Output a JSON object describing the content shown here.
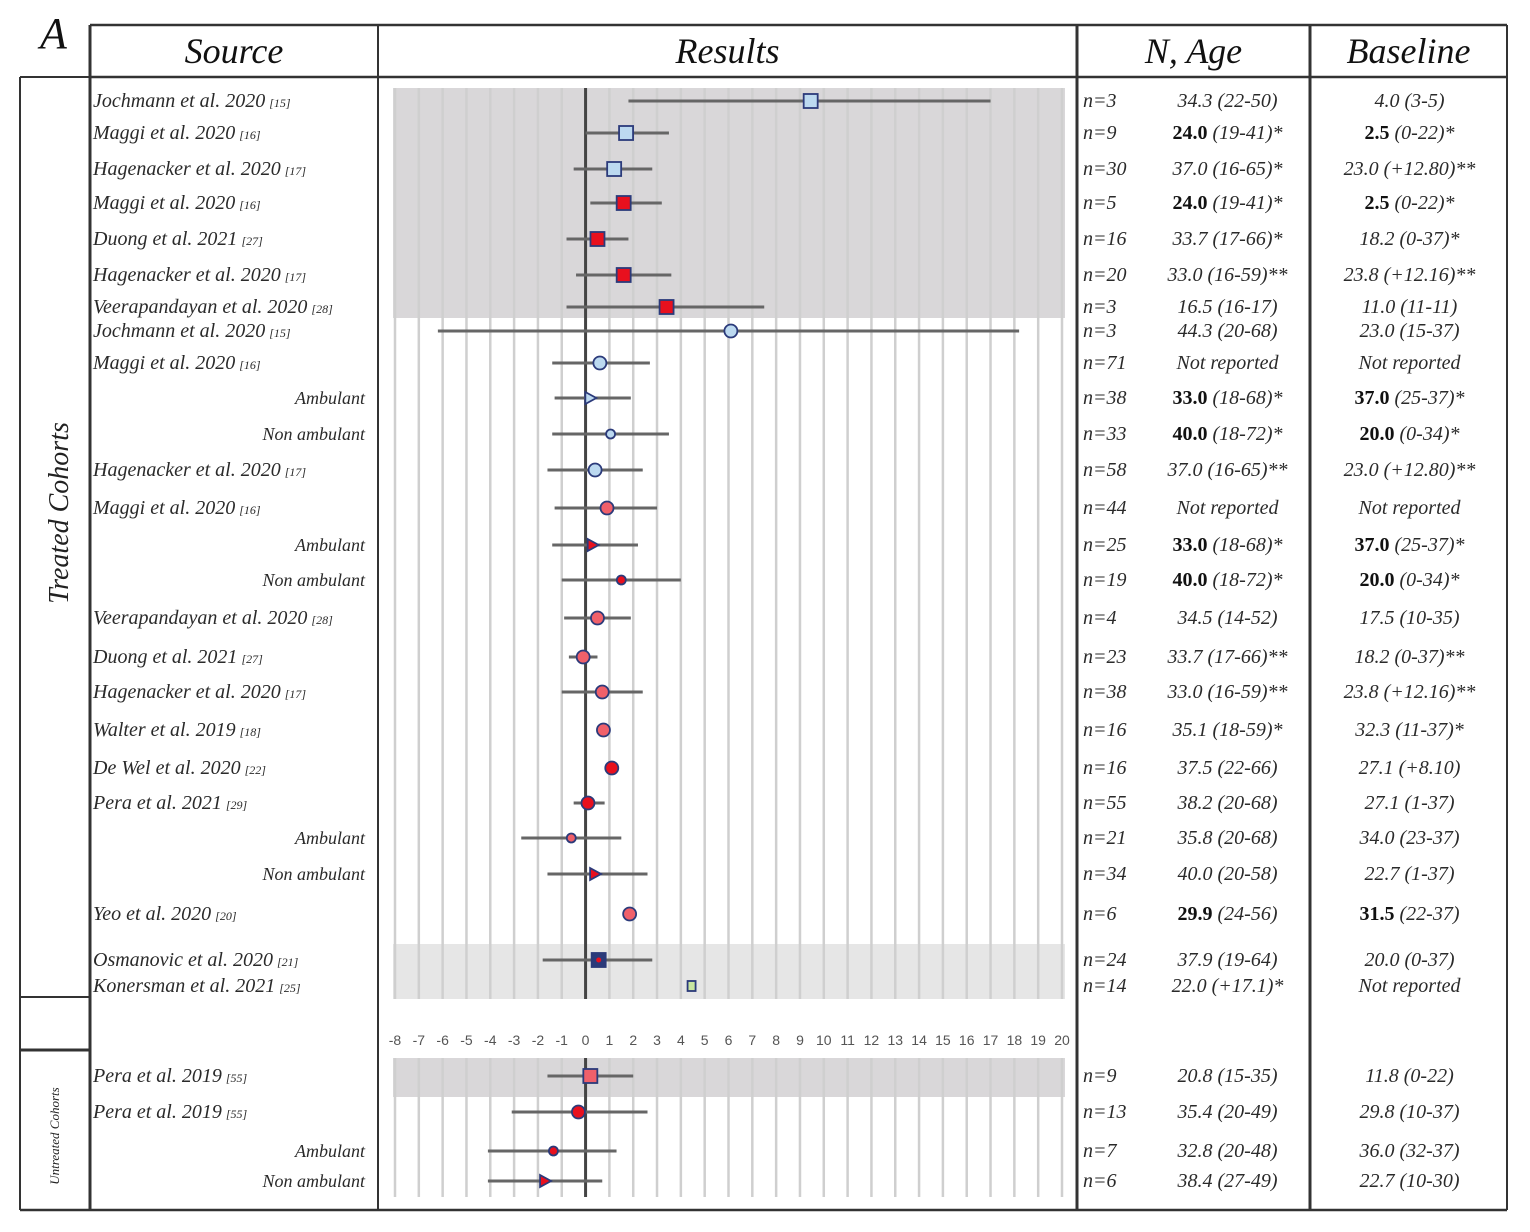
{
  "panel_label": "A",
  "headers": {
    "source": "Source",
    "results": "Results",
    "n_age": "N, Age",
    "baseline": "Baseline"
  },
  "groups": {
    "treated": "Treated Cohorts",
    "untreated": "Untreated Cohorts"
  },
  "chart_data": {
    "type": "forest",
    "x_ticks": [
      -8,
      -7,
      -6,
      -5,
      -4,
      -3,
      -2,
      -1,
      0,
      1,
      2,
      3,
      4,
      5,
      6,
      7,
      8,
      9,
      10,
      11,
      12,
      13,
      14,
      15,
      16,
      17,
      18,
      19,
      20
    ],
    "xlim": [
      -8,
      20
    ],
    "reference_line": 0,
    "grid": "vertical",
    "colors": {
      "light_blue": "#bcd9f0",
      "red": "#e8101e",
      "pink": "#f0606a",
      "navy": "#2b3a7a",
      "green": "#c8e6a0",
      "band": "#d9d7d9",
      "band_light": "#e6e6e6"
    },
    "rows": [
      {
        "source": "Jochmann et al. 2020",
        "ref": "[15]",
        "sub": false,
        "group": "treated",
        "band": "dark",
        "marker": "square",
        "fill": "light_blue",
        "est": 9.45,
        "lo": 1.8,
        "hi": 17.0,
        "n": "n=3",
        "age": {
          "bold": "",
          "text": "34.3 (22-50)"
        },
        "baseline": {
          "bold": "",
          "text": "4.0 (3-5)"
        }
      },
      {
        "source": "Maggi et al. 2020",
        "ref": "[16]",
        "sub": false,
        "group": "treated",
        "band": "dark",
        "marker": "square",
        "fill": "light_blue",
        "est": 1.7,
        "lo": 0.0,
        "hi": 3.5,
        "n": "n=9",
        "age": {
          "bold": "24.0",
          "text": " (19-41)*"
        },
        "baseline": {
          "bold": "2.5",
          "text": " (0-22)*"
        }
      },
      {
        "source": "Hagenacker et al. 2020",
        "ref": "[17]",
        "sub": false,
        "group": "treated",
        "band": "dark",
        "marker": "square",
        "fill": "light_blue",
        "est": 1.2,
        "lo": -0.5,
        "hi": 2.8,
        "n": "n=30",
        "age": {
          "bold": "",
          "text": "37.0 (16-65)*"
        },
        "baseline": {
          "bold": "",
          "text": "23.0 (+12.80)**"
        }
      },
      {
        "source": "Maggi et al. 2020",
        "ref": "[16]",
        "sub": false,
        "group": "treated",
        "band": "dark",
        "marker": "square",
        "fill": "red",
        "est": 1.6,
        "lo": 0.2,
        "hi": 3.2,
        "n": "n=5",
        "age": {
          "bold": "24.0",
          "text": " (19-41)*"
        },
        "baseline": {
          "bold": "2.5",
          "text": " (0-22)*"
        }
      },
      {
        "source": "Duong et al. 2021",
        "ref": "[27]",
        "sub": false,
        "group": "treated",
        "band": "dark",
        "marker": "square",
        "fill": "red",
        "est": 0.5,
        "lo": -0.8,
        "hi": 1.8,
        "n": "n=16",
        "age": {
          "bold": "",
          "text": "33.7 (17-66)*"
        },
        "baseline": {
          "bold": "",
          "text": "18.2 (0-37)*"
        }
      },
      {
        "source": "Hagenacker et al. 2020",
        "ref": "[17]",
        "sub": false,
        "group": "treated",
        "band": "dark",
        "marker": "square",
        "fill": "red",
        "est": 1.6,
        "lo": -0.4,
        "hi": 3.6,
        "n": "n=20",
        "age": {
          "bold": "",
          "text": "33.0 (16-59)**"
        },
        "baseline": {
          "bold": "",
          "text": "23.8 (+12.16)**"
        }
      },
      {
        "source": "Veerapandayan et al. 2020",
        "ref": "[28]",
        "sub": false,
        "group": "treated",
        "band": "dark",
        "marker": "square",
        "fill": "red",
        "est": 3.4,
        "lo": -0.8,
        "hi": 7.5,
        "n": "n=3",
        "age": {
          "bold": "",
          "text": "16.5 (16-17)"
        },
        "baseline": {
          "bold": "",
          "text": "11.0 (11-11)"
        }
      },
      {
        "source": "Jochmann et al. 2020",
        "ref": "[15]",
        "sub": false,
        "group": "treated",
        "band": "",
        "marker": "circle",
        "fill": "light_blue",
        "est": 6.1,
        "lo": -6.2,
        "hi": 18.2,
        "n": "n=3",
        "age": {
          "bold": "",
          "text": "44.3 (20-68)"
        },
        "baseline": {
          "bold": "",
          "text": "23.0 (15-37)"
        }
      },
      {
        "source": "Maggi et al. 2020",
        "ref": "[16]",
        "sub": false,
        "group": "treated",
        "band": "",
        "marker": "circle",
        "fill": "light_blue",
        "est": 0.6,
        "lo": -1.4,
        "hi": 2.7,
        "n": "n=71",
        "age": {
          "bold": "",
          "text": "Not reported"
        },
        "baseline": {
          "bold": "",
          "text": "Not reported"
        }
      },
      {
        "source": "Ambulant",
        "ref": "",
        "sub": true,
        "group": "treated",
        "band": "",
        "marker": "triangle",
        "fill": "light_blue",
        "est": 0.2,
        "lo": -1.3,
        "hi": 1.9,
        "n": "n=38",
        "age": {
          "bold": "33.0",
          "text": " (18-68)*"
        },
        "baseline": {
          "bold": "37.0",
          "text": " (25-37)*"
        }
      },
      {
        "source": "Non ambulant",
        "ref": "",
        "sub": true,
        "group": "treated",
        "band": "",
        "marker": "small-circle",
        "fill": "light_blue",
        "est": 1.05,
        "lo": -1.4,
        "hi": 3.5,
        "n": "n=33",
        "age": {
          "bold": "40.0",
          "text": " (18-72)*"
        },
        "baseline": {
          "bold": "20.0",
          "text": " (0-34)*"
        }
      },
      {
        "source": "Hagenacker et al. 2020",
        "ref": "[17]",
        "sub": false,
        "group": "treated",
        "band": "",
        "marker": "circle",
        "fill": "light_blue",
        "est": 0.4,
        "lo": -1.6,
        "hi": 2.4,
        "n": "n=58",
        "age": {
          "bold": "",
          "text": "37.0 (16-65)**"
        },
        "baseline": {
          "bold": "",
          "text": "23.0 (+12.80)**"
        }
      },
      {
        "source": "Maggi et al. 2020",
        "ref": "[16]",
        "sub": false,
        "group": "treated",
        "band": "",
        "marker": "circle",
        "fill": "pink",
        "est": 0.9,
        "lo": -1.3,
        "hi": 3.0,
        "n": "n=44",
        "age": {
          "bold": "",
          "text": "Not reported"
        },
        "baseline": {
          "bold": "",
          "text": "Not reported"
        }
      },
      {
        "source": "Ambulant",
        "ref": "",
        "sub": true,
        "group": "treated",
        "band": "",
        "marker": "triangle",
        "fill": "red",
        "est": 0.3,
        "lo": -1.4,
        "hi": 2.2,
        "n": "n=25",
        "age": {
          "bold": "33.0",
          "text": " (18-68)*"
        },
        "baseline": {
          "bold": "37.0",
          "text": " (25-37)*"
        }
      },
      {
        "source": "Non ambulant",
        "ref": "",
        "sub": true,
        "group": "treated",
        "band": "",
        "marker": "small-circle",
        "fill": "red",
        "est": 1.5,
        "lo": -1.0,
        "hi": 4.0,
        "n": "n=19",
        "age": {
          "bold": "40.0",
          "text": " (18-72)*"
        },
        "baseline": {
          "bold": "20.0",
          "text": " (0-34)*"
        }
      },
      {
        "source": "Veerapandayan et al. 2020",
        "ref": "[28]",
        "sub": false,
        "group": "treated",
        "band": "",
        "marker": "circle",
        "fill": "pink",
        "est": 0.5,
        "lo": -0.9,
        "hi": 1.9,
        "n": "n=4",
        "age": {
          "bold": "",
          "text": "34.5 (14-52)"
        },
        "baseline": {
          "bold": "",
          "text": "17.5 (10-35)"
        }
      },
      {
        "source": "Duong et al. 2021",
        "ref": "[27]",
        "sub": false,
        "group": "treated",
        "band": "",
        "marker": "circle",
        "fill": "pink",
        "est": -0.1,
        "lo": -0.7,
        "hi": 0.5,
        "n": "n=23",
        "age": {
          "bold": "",
          "text": "33.7 (17-66)**"
        },
        "baseline": {
          "bold": "",
          "text": "18.2 (0-37)**"
        }
      },
      {
        "source": "Hagenacker et al. 2020",
        "ref": "[17]",
        "sub": false,
        "group": "treated",
        "band": "",
        "marker": "circle",
        "fill": "pink",
        "est": 0.7,
        "lo": -1.0,
        "hi": 2.4,
        "n": "n=38",
        "age": {
          "bold": "",
          "text": "33.0 (16-59)**"
        },
        "baseline": {
          "bold": "",
          "text": "23.8 (+12.16)**"
        }
      },
      {
        "source": "Walter et al. 2019",
        "ref": "[18]",
        "sub": false,
        "group": "treated",
        "band": "",
        "marker": "circle",
        "fill": "pink",
        "est": 0.75,
        "lo": null,
        "hi": null,
        "n": "n=16",
        "age": {
          "bold": "",
          "text": "35.1 (18-59)*"
        },
        "baseline": {
          "bold": "",
          "text": "32.3 (11-37)*"
        }
      },
      {
        "source": "De Wel et al. 2020",
        "ref": "[22]",
        "sub": false,
        "group": "treated",
        "band": "",
        "marker": "circle",
        "fill": "red",
        "est": 1.1,
        "lo": null,
        "hi": null,
        "n": "n=16",
        "age": {
          "bold": "",
          "text": "37.5 (22-66)"
        },
        "baseline": {
          "bold": "",
          "text": "27.1 (+8.10)"
        }
      },
      {
        "source": "Pera et al. 2021",
        "ref": "[29]",
        "sub": false,
        "group": "treated",
        "band": "",
        "marker": "circle",
        "fill": "red",
        "est": 0.1,
        "lo": -0.5,
        "hi": 0.8,
        "n": "n=55",
        "age": {
          "bold": "",
          "text": "38.2 (20-68)"
        },
        "baseline": {
          "bold": "",
          "text": "27.1 (1-37)"
        }
      },
      {
        "source": "Ambulant",
        "ref": "",
        "sub": true,
        "group": "treated",
        "band": "",
        "marker": "small-circle",
        "fill": "pink",
        "est": -0.6,
        "lo": -2.7,
        "hi": 1.5,
        "n": "n=21",
        "age": {
          "bold": "",
          "text": "35.8 (20-68)"
        },
        "baseline": {
          "bold": "",
          "text": "34.0 (23-37)"
        }
      },
      {
        "source": "Non ambulant",
        "ref": "",
        "sub": true,
        "group": "treated",
        "band": "",
        "marker": "triangle",
        "fill": "red",
        "est": 0.4,
        "lo": -1.6,
        "hi": 2.6,
        "n": "n=34",
        "age": {
          "bold": "",
          "text": "40.0 (20-58)"
        },
        "baseline": {
          "bold": "",
          "text": "22.7 (1-37)"
        }
      },
      {
        "source": "Yeo et al. 2020",
        "ref": "[20]",
        "sub": false,
        "group": "treated",
        "band": "",
        "marker": "circle",
        "fill": "pink",
        "est": 1.85,
        "lo": null,
        "hi": null,
        "n": "n=6",
        "age": {
          "bold": "29.9",
          "text": " (24-56)"
        },
        "baseline": {
          "bold": "31.5",
          "text": " (22-37)"
        }
      },
      {
        "source": "Osmanovic et al. 2020",
        "ref": "[21]",
        "sub": false,
        "group": "treated",
        "band": "light",
        "marker": "square",
        "fill": "navy",
        "est": 0.55,
        "lo": -1.8,
        "hi": 2.8,
        "n": "n=24",
        "age": {
          "bold": "",
          "text": "37.9 (19-64)"
        },
        "baseline": {
          "bold": "",
          "text": "20.0 (0-37)"
        }
      },
      {
        "source": "Konersman et al. 2021",
        "ref": "[25]",
        "sub": false,
        "group": "treated",
        "band": "light",
        "marker": "small-square",
        "fill": "green",
        "est": 4.45,
        "lo": null,
        "hi": null,
        "n": "n=14",
        "age": {
          "bold": "",
          "text": "22.0 (+17.1)*"
        },
        "baseline": {
          "bold": "",
          "text": "Not reported"
        }
      },
      {
        "source": "Pera et al. 2019",
        "ref": "[55]",
        "sub": false,
        "group": "untreated",
        "band": "dark",
        "marker": "square",
        "fill": "pink",
        "est": 0.2,
        "lo": -1.6,
        "hi": 2.0,
        "n": "n=9",
        "age": {
          "bold": "",
          "text": "20.8 (15-35)"
        },
        "baseline": {
          "bold": "",
          "text": "11.8 (0-22)"
        }
      },
      {
        "source": "Pera et al. 2019",
        "ref": "[55]",
        "sub": false,
        "group": "untreated",
        "band": "",
        "marker": "circle",
        "fill": "red",
        "est": -0.3,
        "lo": -3.1,
        "hi": 2.6,
        "n": "n=13",
        "age": {
          "bold": "",
          "text": "35.4 (20-49)"
        },
        "baseline": {
          "bold": "",
          "text": "29.8 (10-37)"
        }
      },
      {
        "source": "Ambulant",
        "ref": "",
        "sub": true,
        "group": "untreated",
        "band": "",
        "marker": "small-circle",
        "fill": "red",
        "est": -1.35,
        "lo": -4.1,
        "hi": 1.3,
        "n": "n=7",
        "age": {
          "bold": "",
          "text": "32.8 (20-48)"
        },
        "baseline": {
          "bold": "",
          "text": "36.0 (32-37)"
        }
      },
      {
        "source": "Non ambulant",
        "ref": "",
        "sub": true,
        "group": "untreated",
        "band": "",
        "marker": "triangle",
        "fill": "red",
        "est": -1.7,
        "lo": -4.1,
        "hi": 0.7,
        "n": "n=6",
        "age": {
          "bold": "",
          "text": "38.4 (27-49)"
        },
        "baseline": {
          "bold": "",
          "text": "22.7 (10-30)"
        }
      }
    ]
  }
}
